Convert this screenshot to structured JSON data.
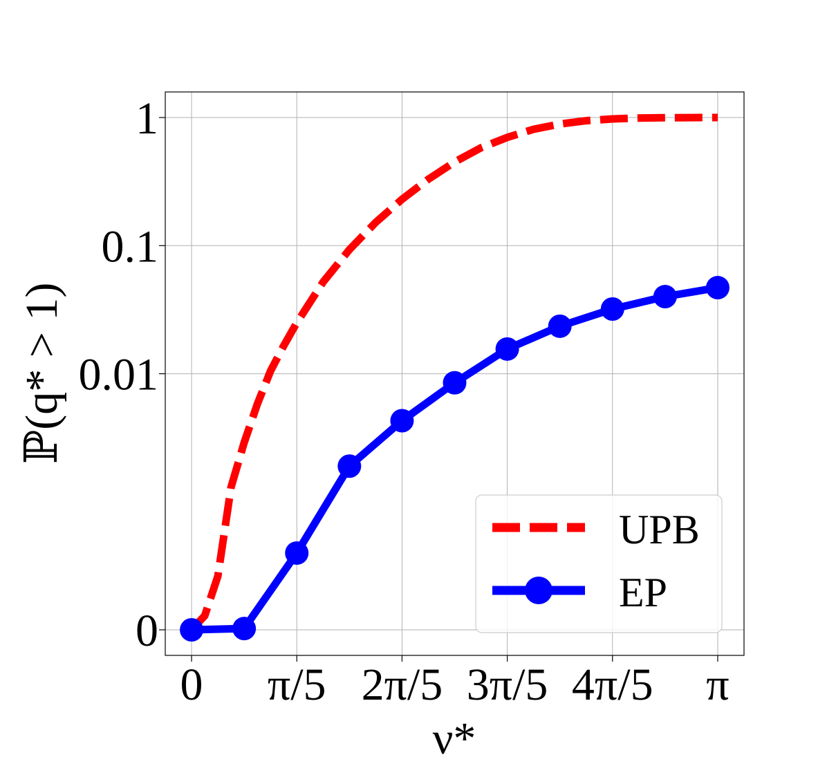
{
  "chart_data": {
    "type": "line",
    "title": "",
    "xlabel": "ν*",
    "ylabel": "ℙ(q* > 1)",
    "x_tick_labels": [
      "0",
      "π/5",
      "2π/5",
      "3π/5",
      "4π/5",
      "π"
    ],
    "x_tick_values": [
      0,
      0.2,
      0.4,
      0.6,
      0.8,
      1.0
    ],
    "x_unit": "π",
    "xlim": [
      -0.05,
      1.05
    ],
    "y_tick_labels": [
      "0",
      "0.01",
      "0.1",
      "1"
    ],
    "y_tick_values": [
      0,
      0.01,
      0.1,
      1
    ],
    "y_scale": "symlog",
    "grid": true,
    "legend_position": "lower-right",
    "series": [
      {
        "name": "UPB",
        "style": "dashed",
        "color": "#ff0000",
        "x": [
          0.0,
          0.025,
          0.05,
          0.075,
          0.1,
          0.125,
          0.15,
          0.175,
          0.2,
          0.25,
          0.3,
          0.35,
          0.4,
          0.45,
          0.5,
          0.55,
          0.6,
          0.65,
          0.7,
          0.75,
          0.8,
          0.85,
          0.9,
          0.95,
          1.0
        ],
        "y": [
          0.0,
          0.00011,
          0.00042,
          0.0013,
          0.0029,
          0.0058,
          0.0105,
          0.0165,
          0.025,
          0.052,
          0.093,
          0.152,
          0.23,
          0.33,
          0.45,
          0.58,
          0.7,
          0.81,
          0.89,
          0.945,
          0.975,
          0.99,
          0.996,
          0.999,
          1.0
        ]
      },
      {
        "name": "EP",
        "style": "solid-markers",
        "color": "#0000ff",
        "x": [
          0.0,
          0.1,
          0.2,
          0.3,
          0.4,
          0.5,
          0.6,
          0.7,
          0.8,
          0.9,
          1.0
        ],
        "y": [
          0.0,
          1e-05,
          0.0006,
          0.0019,
          0.0043,
          0.0085,
          0.0156,
          0.0235,
          0.032,
          0.04,
          0.047
        ]
      }
    ]
  }
}
